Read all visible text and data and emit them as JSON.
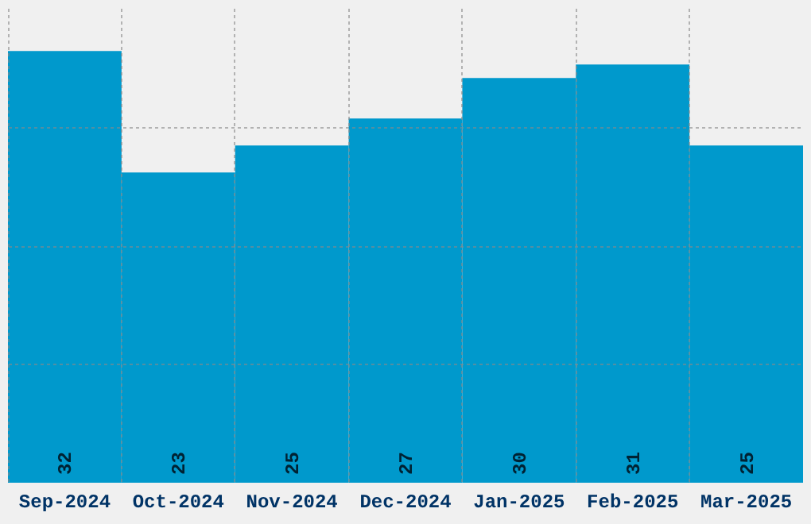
{
  "chart_data": {
    "type": "bar",
    "categories": [
      "Sep-2024",
      "Oct-2024",
      "Nov-2024",
      "Dec-2024",
      "Jan-2025",
      "Feb-2025",
      "Mar-2025"
    ],
    "values": [
      32,
      23,
      25,
      27,
      30,
      31,
      25
    ],
    "color": "#0099cc",
    "ylim": [
      0,
      35.2
    ],
    "yticks": [
      {
        "value": 8.8,
        "label": null
      },
      {
        "value": 17.6,
        "label": null
      },
      {
        "value": 26.4,
        "label": null
      }
    ],
    "tick_labels": "x",
    "grid": true,
    "data_labels": true
  }
}
